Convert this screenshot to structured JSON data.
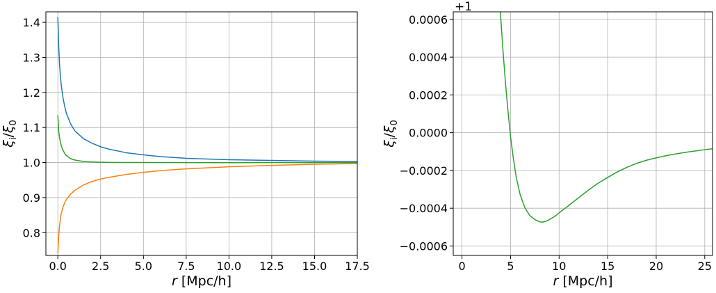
{
  "chart_data": [
    {
      "type": "line",
      "xlabel": "r [Mpc/h]",
      "ylabel": "ξi/ξ0",
      "xlim": [
        -0.7,
        17.5
      ],
      "ylim": [
        0.735,
        1.43
      ],
      "grid": true,
      "xticks": [
        "0.0",
        "2.5",
        "5.0",
        "7.5",
        "10.0",
        "12.5",
        "15.0",
        "17.5"
      ],
      "xtick_values": [
        0,
        2.5,
        5,
        7.5,
        10,
        12.5,
        15,
        17.5
      ],
      "yticks": [
        "0.8",
        "0.9",
        "1.0",
        "1.1",
        "1.2",
        "1.3",
        "1.4"
      ],
      "ytick_values": [
        0.8,
        0.9,
        1.0,
        1.1,
        1.2,
        1.3,
        1.4
      ],
      "series": [
        {
          "color": "#1f77b4",
          "x": [
            0.0,
            0.05,
            0.1,
            0.15,
            0.2,
            0.3,
            0.4,
            0.5,
            0.75,
            1.0,
            1.5,
            2.0,
            2.5,
            3.0,
            4.0,
            5.0,
            6.0,
            7.5,
            10.0,
            12.5,
            15.0,
            17.5
          ],
          "y": [
            1.415,
            1.33,
            1.28,
            1.245,
            1.22,
            1.185,
            1.16,
            1.14,
            1.11,
            1.09,
            1.068,
            1.055,
            1.045,
            1.038,
            1.028,
            1.022,
            1.017,
            1.012,
            1.008,
            1.006,
            1.004,
            1.003
          ]
        },
        {
          "color": "#ff7f0e",
          "x": [
            0.0,
            0.05,
            0.1,
            0.15,
            0.2,
            0.3,
            0.4,
            0.5,
            0.75,
            1.0,
            1.5,
            2.0,
            2.5,
            3.0,
            4.0,
            5.0,
            6.0,
            7.5,
            10.0,
            12.5,
            15.0,
            17.5
          ],
          "y": [
            0.74,
            0.79,
            0.82,
            0.84,
            0.855,
            0.873,
            0.885,
            0.895,
            0.91,
            0.921,
            0.936,
            0.946,
            0.953,
            0.958,
            0.966,
            0.972,
            0.977,
            0.982,
            0.988,
            0.992,
            0.995,
            0.997
          ]
        },
        {
          "color": "#2ca02c",
          "x": [
            0.0,
            0.05,
            0.1,
            0.15,
            0.2,
            0.3,
            0.4,
            0.5,
            0.75,
            1.0,
            1.5,
            2.0,
            2.5,
            3.0,
            4.0,
            5.0,
            7.5,
            10.0,
            12.5,
            15.0,
            17.5
          ],
          "y": [
            1.135,
            1.09,
            1.07,
            1.058,
            1.048,
            1.035,
            1.026,
            1.02,
            1.011,
            1.007,
            1.003,
            1.0015,
            1.0008,
            1.0004,
            1.0001,
            1.0,
            0.9998,
            0.9997,
            0.9998,
            0.9998,
            0.9999
          ]
        }
      ]
    },
    {
      "type": "line",
      "xlabel": "r [Mpc/h]",
      "ylabel": "ξi/ξ0",
      "offset_text": "+1",
      "xlim": [
        -0.9,
        25.8
      ],
      "ylim": [
        -0.00065,
        0.00064
      ],
      "grid": true,
      "xticks": [
        "0",
        "5",
        "10",
        "15",
        "20",
        "25"
      ],
      "xtick_values": [
        0,
        5,
        10,
        15,
        20,
        25
      ],
      "yticks": [
        "−0.0006",
        "−0.0004",
        "−0.0002",
        "0.0000",
        "0.0002",
        "0.0004",
        "0.0006"
      ],
      "ytick_values": [
        -0.0006,
        -0.0004,
        -0.0002,
        0.0,
        0.0002,
        0.0004,
        0.0006
      ],
      "series": [
        {
          "color": "#2ca02c",
          "x": [
            3.95,
            4.2,
            4.5,
            4.8,
            5.0,
            5.3,
            5.6,
            6.0,
            6.5,
            7.0,
            7.5,
            8.0,
            8.3,
            8.7,
            9.0,
            9.5,
            10.0,
            11.0,
            12.0,
            13.0,
            14.0,
            15.0,
            16.0,
            17.0,
            18.0,
            19.0,
            20.0,
            21.0,
            22.0,
            23.0,
            24.0,
            25.0,
            25.8
          ],
          "y": [
            0.00064,
            0.00045,
            0.00025,
            8e-05,
            -2e-05,
            -0.00014,
            -0.00024,
            -0.00033,
            -0.0004,
            -0.00044,
            -0.00046,
            -0.000472,
            -0.000474,
            -0.000468,
            -0.00046,
            -0.000445,
            -0.000425,
            -0.000385,
            -0.000345,
            -0.000305,
            -0.000268,
            -0.000237,
            -0.000208,
            -0.000183,
            -0.000162,
            -0.000146,
            -0.000133,
            -0.000122,
            -0.000113,
            -0.000104,
            -9.7e-05,
            -9e-05,
            -8.5e-05
          ]
        }
      ]
    }
  ]
}
